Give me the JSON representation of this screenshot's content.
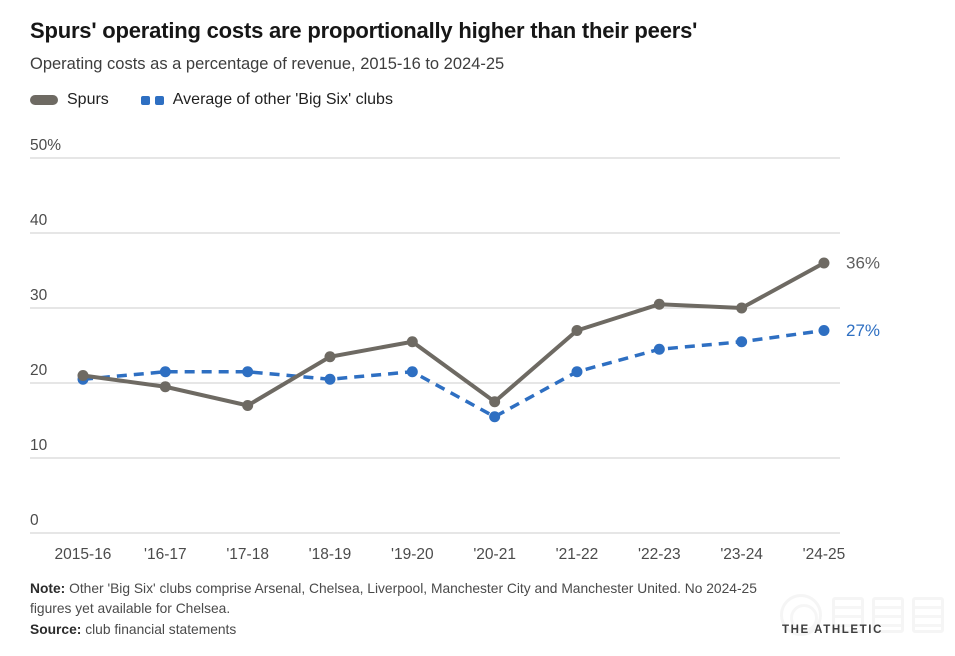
{
  "header": {
    "title": "Spurs' operating costs are proportionally higher than their peers'",
    "subtitle": "Operating costs as a percentage of revenue, 2015-16 to 2024-25"
  },
  "legend": [
    {
      "label": "Spurs",
      "color": "#6e6a63",
      "style": "solid"
    },
    {
      "label": "Average of other 'Big Six' clubs",
      "color": "#2e6fc2",
      "style": "dashed"
    }
  ],
  "chart_data": {
    "type": "line",
    "categories": [
      "2015-16",
      "'16-17",
      "'17-18",
      "'18-19",
      "'19-20",
      "'20-21",
      "'21-22",
      "'22-23",
      "'23-24",
      "'24-25"
    ],
    "series": [
      {
        "name": "Spurs",
        "color": "#6e6a63",
        "dash": "solid",
        "values": [
          21,
          19.5,
          17,
          23.5,
          25.5,
          17.5,
          27,
          30.5,
          30,
          36
        ],
        "end_label": "36%",
        "end_label_color": "#5e5e5e"
      },
      {
        "name": "Average of other 'Big Six' clubs",
        "color": "#2e6fc2",
        "dash": "dashed",
        "values": [
          20.5,
          21.5,
          21.5,
          20.5,
          21.5,
          15.5,
          21.5,
          24.5,
          25.5,
          27
        ],
        "end_label": "27%",
        "end_label_color": "#2e6fc2"
      }
    ],
    "y_ticks": [
      {
        "value": 50,
        "label": "50%"
      },
      {
        "value": 40,
        "label": "40"
      },
      {
        "value": 30,
        "label": "30"
      },
      {
        "value": 20,
        "label": "20"
      },
      {
        "value": 10,
        "label": "10"
      },
      {
        "value": 0,
        "label": "0"
      }
    ],
    "ylim": [
      0,
      50
    ],
    "grid": true,
    "legend_position": "top",
    "grid_color": "#cdcdcd",
    "axis_text_color": "#4b4b4b"
  },
  "footer": {
    "note_label": "Note:",
    "note_text": " Other 'Big Six' clubs comprise Arsenal, Chelsea, Liverpool, Manchester City and Manchester United. No 2024-25 figures yet available for Chelsea.",
    "source_label": "Source:",
    "source_text": " club financial statements",
    "brand": "THE ATHLETIC"
  }
}
